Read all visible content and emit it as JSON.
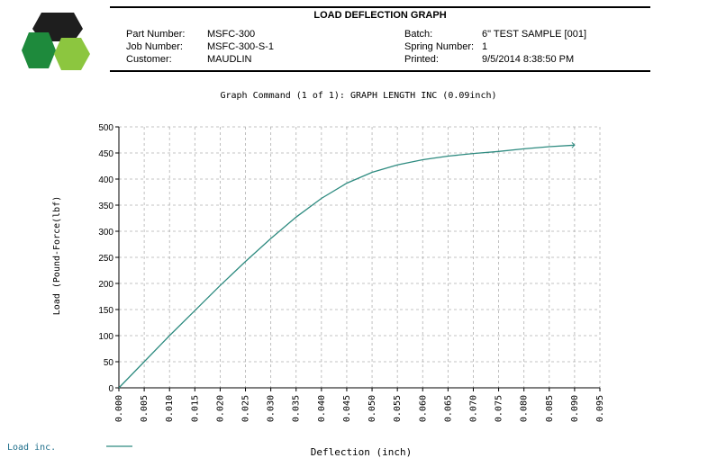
{
  "header": {
    "title": "LOAD DEFLECTION GRAPH",
    "fields_left": [
      {
        "label": "Part Number:",
        "value": "MSFC-300"
      },
      {
        "label": "Job Number:",
        "value": "MSFC-300-S-1"
      },
      {
        "label": "Customer:",
        "value": "MAUDLIN"
      }
    ],
    "fields_right": [
      {
        "label": "Batch:",
        "value": "6\" TEST SAMPLE [001]"
      },
      {
        "label": "Spring Number:",
        "value": "1"
      },
      {
        "label": "Printed:",
        "value": "9/5/2014 8:38:50 PM"
      }
    ]
  },
  "colors": {
    "logo_dark": "#1e1e1e",
    "logo_green": "#1e8a3c",
    "logo_lime": "#8cc63f",
    "curve": "#2e8b80",
    "grid": "#b0b0b0"
  },
  "chart_data": {
    "type": "line",
    "title": "Graph Command (1 of 1): GRAPH LENGTH INC (0.09inch)",
    "xlabel": "Deflection (inch)",
    "ylabel": "Load (Pound-Force(lbf)",
    "xlim": [
      0,
      0.095
    ],
    "ylim": [
      0,
      500
    ],
    "x_ticks": [
      "0.000",
      "0.005",
      "0.010",
      "0.015",
      "0.020",
      "0.025",
      "0.030",
      "0.035",
      "0.040",
      "0.045",
      "0.050",
      "0.055",
      "0.060",
      "0.065",
      "0.070",
      "0.075",
      "0.080",
      "0.085",
      "0.090",
      "0.095"
    ],
    "y_ticks": [
      "0",
      "50",
      "100",
      "150",
      "200",
      "250",
      "300",
      "350",
      "400",
      "450",
      "500"
    ],
    "grid": true,
    "legend_position": "bottom-left",
    "series": [
      {
        "name": "Load inc.",
        "x": [
          0,
          0.005,
          0.01,
          0.015,
          0.02,
          0.025,
          0.03,
          0.035,
          0.04,
          0.045,
          0.05,
          0.055,
          0.06,
          0.065,
          0.07,
          0.075,
          0.08,
          0.085,
          0.09
        ],
        "y": [
          0,
          50,
          100,
          148,
          196,
          242,
          286,
          327,
          363,
          392,
          413,
          427,
          437,
          444,
          449,
          453,
          458,
          462,
          465
        ]
      }
    ]
  }
}
